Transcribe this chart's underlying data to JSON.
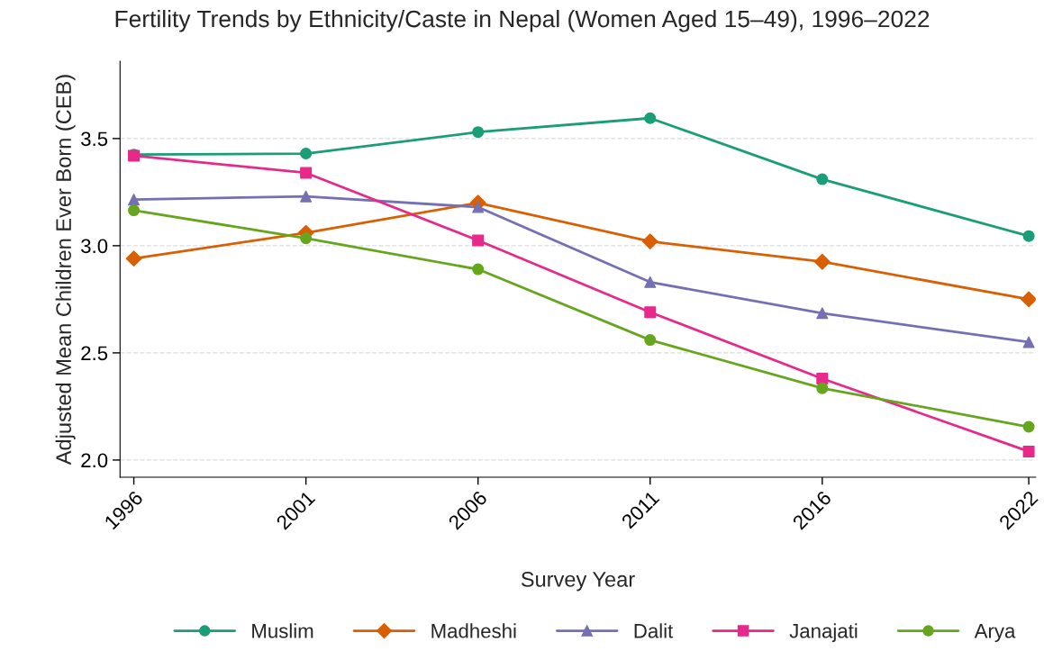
{
  "chart_data": {
    "type": "line",
    "title": "Fertility Trends by Ethnicity/Caste in Nepal (Women Aged 15–49), 1996–2022",
    "xlabel": "Survey Year",
    "ylabel": "Adjusted Mean Children Ever Born (CEB)",
    "x": [
      1996,
      2001,
      2006,
      2011,
      2016,
      2022
    ],
    "xlim": [
      1995.6,
      2022.2
    ],
    "xticks": [
      1996,
      2001,
      2006,
      2011,
      2016,
      2022
    ],
    "ylim": [
      1.92,
      3.86
    ],
    "yticks": [
      {
        "value": 2.0,
        "label": "2.0"
      },
      {
        "value": 2.5,
        "label": "2.5"
      },
      {
        "value": 3.0,
        "label": "3.0"
      },
      {
        "value": 3.5,
        "label": "3.5"
      }
    ],
    "grid": "y",
    "legend": "bottom",
    "line_style": "solid",
    "series": [
      {
        "name": "Muslim",
        "color": "#1b9e77",
        "marker": "circle",
        "values": [
          3.425,
          3.43,
          3.53,
          3.595,
          3.31,
          3.045
        ]
      },
      {
        "name": "Madheshi",
        "color": "#d95f02",
        "marker": "diamond",
        "values": [
          2.94,
          3.06,
          3.2,
          3.02,
          2.925,
          2.75
        ]
      },
      {
        "name": "Dalit",
        "color": "#7570b3",
        "marker": "triangle",
        "values": [
          3.215,
          3.23,
          3.18,
          2.83,
          2.685,
          2.55
        ]
      },
      {
        "name": "Janajati",
        "color": "#e7298a",
        "marker": "square",
        "values": [
          3.42,
          3.34,
          3.025,
          2.69,
          2.38,
          2.04
        ]
      },
      {
        "name": "Arya",
        "color": "#66a61e",
        "marker": "circle",
        "values": [
          3.165,
          3.035,
          2.89,
          2.56,
          2.335,
          2.155
        ]
      }
    ]
  }
}
